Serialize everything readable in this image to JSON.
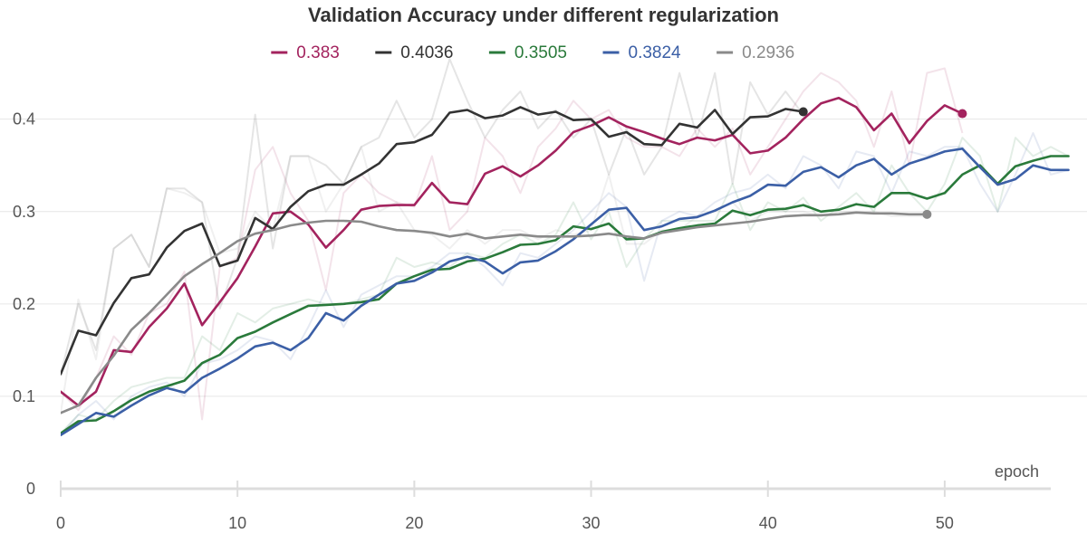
{
  "chart_data": {
    "type": "line",
    "title": "Validation Accuracy under different regularization",
    "xlabel": "epoch",
    "ylabel": "",
    "xlim": [
      0,
      56
    ],
    "ylim": [
      0,
      0.48
    ],
    "x_ticks": [
      0,
      10,
      20,
      30,
      40,
      50
    ],
    "y_ticks": [
      0,
      0.1,
      0.2,
      0.3,
      0.4
    ],
    "grid": true,
    "legend_position": "top",
    "series": [
      {
        "name": "0.383",
        "color": "#a3235e",
        "smoothed": [
          0.105,
          0.09,
          0.105,
          0.15,
          0.148,
          0.175,
          0.195,
          0.222,
          0.177,
          0.202,
          0.228,
          0.262,
          0.298,
          0.3,
          0.286,
          0.261,
          0.28,
          0.302,
          0.306,
          0.307,
          0.307,
          0.331,
          0.31,
          0.308,
          0.341,
          0.349,
          0.338,
          0.35,
          0.366,
          0.386,
          0.393,
          0.402,
          0.392,
          0.386,
          0.379,
          0.373,
          0.38,
          0.377,
          0.383,
          0.363,
          0.366,
          0.38,
          0.4,
          0.417,
          0.423,
          0.413,
          0.388,
          0.406,
          0.374,
          0.398,
          0.415,
          0.406
        ],
        "raw": [
          0.105,
          0.085,
          0.12,
          0.165,
          0.145,
          0.19,
          0.2,
          0.235,
          0.075,
          0.24,
          0.25,
          0.345,
          0.37,
          0.32,
          0.29,
          0.215,
          0.32,
          0.34,
          0.32,
          0.31,
          0.305,
          0.36,
          0.28,
          0.3,
          0.38,
          0.36,
          0.32,
          0.37,
          0.39,
          0.42,
          0.4,
          0.41,
          0.38,
          0.37,
          0.37,
          0.36,
          0.39,
          0.37,
          0.39,
          0.34,
          0.37,
          0.4,
          0.43,
          0.45,
          0.44,
          0.42,
          0.37,
          0.43,
          0.35,
          0.45,
          0.455,
          0.385
        ]
      },
      {
        "name": "0.4036",
        "color": "#333333",
        "smoothed": [
          0.124,
          0.171,
          0.166,
          0.201,
          0.228,
          0.232,
          0.261,
          0.279,
          0.287,
          0.241,
          0.247,
          0.293,
          0.281,
          0.305,
          0.322,
          0.329,
          0.329,
          0.34,
          0.352,
          0.373,
          0.375,
          0.383,
          0.407,
          0.41,
          0.401,
          0.404,
          0.413,
          0.405,
          0.408,
          0.399,
          0.4,
          0.381,
          0.386,
          0.373,
          0.372,
          0.395,
          0.391,
          0.41,
          0.384,
          0.402,
          0.403,
          0.411,
          0.408
        ],
        "raw": [
          0.124,
          0.2,
          0.15,
          0.26,
          0.275,
          0.24,
          0.325,
          0.325,
          0.31,
          0.195,
          0.25,
          0.405,
          0.26,
          0.36,
          0.36,
          0.35,
          0.33,
          0.37,
          0.38,
          0.42,
          0.38,
          0.4,
          0.465,
          0.42,
          0.38,
          0.41,
          0.43,
          0.39,
          0.41,
          0.38,
          0.4,
          0.34,
          0.39,
          0.34,
          0.37,
          0.45,
          0.38,
          0.45,
          0.33,
          0.44,
          0.405,
          0.43,
          0.405
        ]
      },
      {
        "name": "0.3505",
        "color": "#2a7a3b",
        "smoothed": [
          0.06,
          0.073,
          0.074,
          0.084,
          0.096,
          0.105,
          0.111,
          0.117,
          0.136,
          0.145,
          0.163,
          0.17,
          0.18,
          0.189,
          0.198,
          0.199,
          0.2,
          0.202,
          0.205,
          0.222,
          0.23,
          0.237,
          0.238,
          0.246,
          0.249,
          0.256,
          0.264,
          0.265,
          0.269,
          0.284,
          0.281,
          0.287,
          0.27,
          0.271,
          0.278,
          0.282,
          0.285,
          0.287,
          0.301,
          0.296,
          0.302,
          0.303,
          0.307,
          0.3,
          0.302,
          0.308,
          0.305,
          0.32,
          0.32,
          0.314,
          0.32,
          0.34,
          0.35,
          0.33,
          0.349,
          0.355,
          0.36,
          0.36
        ],
        "raw": [
          0.06,
          0.08,
          0.075,
          0.095,
          0.11,
          0.115,
          0.12,
          0.12,
          0.165,
          0.15,
          0.19,
          0.18,
          0.195,
          0.2,
          0.205,
          0.2,
          0.2,
          0.205,
          0.21,
          0.25,
          0.24,
          0.245,
          0.24,
          0.255,
          0.25,
          0.265,
          0.275,
          0.265,
          0.275,
          0.31,
          0.27,
          0.3,
          0.24,
          0.27,
          0.29,
          0.29,
          0.29,
          0.29,
          0.33,
          0.28,
          0.31,
          0.3,
          0.315,
          0.29,
          0.305,
          0.32,
          0.3,
          0.35,
          0.32,
          0.3,
          0.33,
          0.38,
          0.36,
          0.3,
          0.38,
          0.36,
          0.37,
          0.36
        ]
      },
      {
        "name": "0.3824",
        "color": "#3b5fa6",
        "smoothed": [
          0.058,
          0.07,
          0.082,
          0.078,
          0.09,
          0.101,
          0.109,
          0.104,
          0.12,
          0.13,
          0.141,
          0.154,
          0.158,
          0.15,
          0.163,
          0.19,
          0.182,
          0.198,
          0.21,
          0.222,
          0.225,
          0.234,
          0.246,
          0.251,
          0.246,
          0.233,
          0.245,
          0.247,
          0.257,
          0.27,
          0.286,
          0.302,
          0.304,
          0.28,
          0.284,
          0.292,
          0.294,
          0.301,
          0.31,
          0.317,
          0.329,
          0.328,
          0.343,
          0.348,
          0.337,
          0.35,
          0.357,
          0.34,
          0.352,
          0.358,
          0.365,
          0.368,
          0.348,
          0.329,
          0.335,
          0.35,
          0.345,
          0.345
        ],
        "raw": [
          0.058,
          0.08,
          0.095,
          0.075,
          0.1,
          0.11,
          0.115,
          0.1,
          0.135,
          0.14,
          0.15,
          0.165,
          0.16,
          0.14,
          0.175,
          0.215,
          0.175,
          0.21,
          0.22,
          0.23,
          0.23,
          0.24,
          0.255,
          0.255,
          0.24,
          0.22,
          0.255,
          0.25,
          0.265,
          0.28,
          0.3,
          0.32,
          0.305,
          0.225,
          0.29,
          0.3,
          0.295,
          0.31,
          0.32,
          0.325,
          0.34,
          0.325,
          0.36,
          0.35,
          0.325,
          0.365,
          0.36,
          0.32,
          0.365,
          0.36,
          0.37,
          0.37,
          0.33,
          0.3,
          0.34,
          0.385,
          0.34,
          0.345
        ]
      },
      {
        "name": "0.2936",
        "color": "#8a8a8a",
        "smoothed": [
          0.082,
          0.09,
          0.12,
          0.144,
          0.172,
          0.19,
          0.21,
          0.23,
          0.243,
          0.255,
          0.268,
          0.276,
          0.28,
          0.285,
          0.288,
          0.29,
          0.29,
          0.289,
          0.284,
          0.28,
          0.279,
          0.277,
          0.273,
          0.276,
          0.271,
          0.273,
          0.275,
          0.273,
          0.273,
          0.273,
          0.274,
          0.276,
          0.273,
          0.271,
          0.277,
          0.28,
          0.283,
          0.285,
          0.287,
          0.289,
          0.292,
          0.295,
          0.296,
          0.296,
          0.297,
          0.299,
          0.298,
          0.298,
          0.297,
          0.297
        ],
        "raw": [
          0.082,
          0.205,
          0.14,
          0.26,
          0.275,
          0.24,
          0.325,
          0.32,
          0.31,
          0.255,
          0.26,
          0.3,
          0.28,
          0.36,
          0.36,
          0.3,
          0.33,
          0.37,
          0.3,
          0.31,
          0.28,
          0.275,
          0.26,
          0.28,
          0.265,
          0.28,
          0.28,
          0.27,
          0.28,
          0.275,
          0.28,
          0.34,
          0.265,
          0.265,
          0.28,
          0.28,
          0.295,
          0.3,
          0.31,
          0.29,
          0.3,
          0.3,
          0.3,
          0.295,
          0.3,
          0.3,
          0.3,
          0.295,
          0.295,
          0.295
        ]
      }
    ]
  }
}
